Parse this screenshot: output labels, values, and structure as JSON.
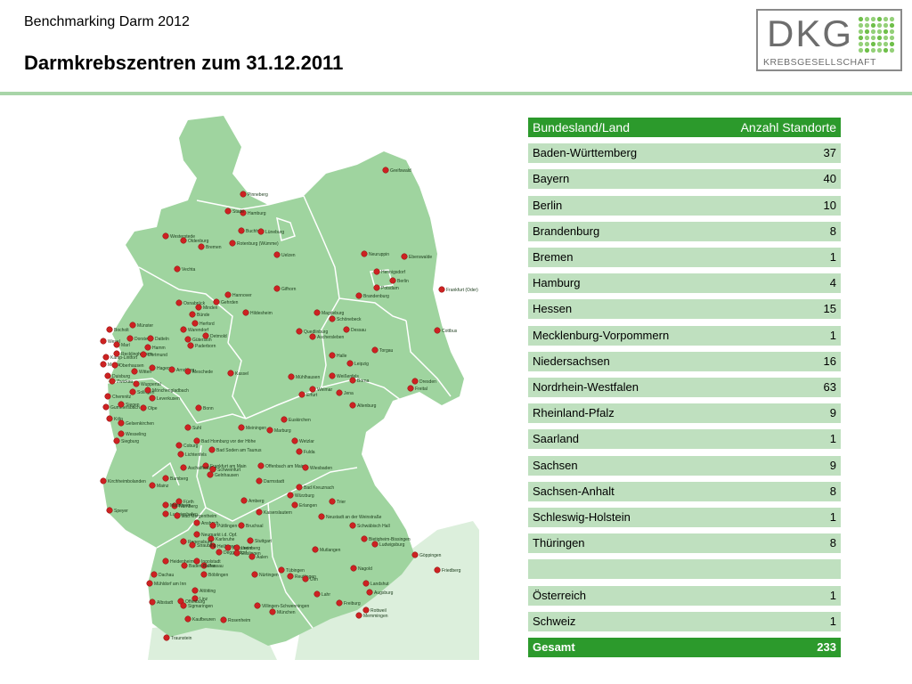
{
  "header": {
    "subtitle": "Benchmarking Darm 2012",
    "title": "Darmkrebszentren zum 31.12.2011"
  },
  "logo": {
    "letters": "DKG",
    "tagline": "KREBSGESELLSCHAFT",
    "colors": {
      "text": "#6d6d6d",
      "dots": "#6fbf4a"
    }
  },
  "colors": {
    "map_land": "#9fd49f",
    "map_border": "#ffffff",
    "map_neighbors": "#dcefdc",
    "marker": "#cc2222",
    "table_header": "#2c9a2c",
    "table_row": "#bfe0bf"
  },
  "table": {
    "header": {
      "name": "Bundesland/Land",
      "value": "Anzahl Standorte"
    },
    "rows": [
      {
        "name": "Baden-Württemberg",
        "value": "37"
      },
      {
        "name": "Bayern",
        "value": "40"
      },
      {
        "name": "Berlin",
        "value": "10"
      },
      {
        "name": "Brandenburg",
        "value": "8"
      },
      {
        "name": "Bremen",
        "value": "1"
      },
      {
        "name": "Hamburg",
        "value": "4"
      },
      {
        "name": "Hessen",
        "value": "15"
      },
      {
        "name": "Mecklenburg-Vorpommern",
        "value": "1"
      },
      {
        "name": "Niedersachsen",
        "value": "16"
      },
      {
        "name": "Nordrhein-Westfalen",
        "value": "63"
      },
      {
        "name": "Rheinland-Pfalz",
        "value": "9"
      },
      {
        "name": "Saarland",
        "value": "1"
      },
      {
        "name": "Sachsen",
        "value": "9"
      },
      {
        "name": "Sachsen-Anhalt",
        "value": "8"
      },
      {
        "name": "Schleswig-Holstein",
        "value": "1"
      },
      {
        "name": "Thüringen",
        "value": "8"
      },
      {
        "name": "",
        "value": ""
      },
      {
        "name": "Österreich",
        "value": "1"
      },
      {
        "name": "Schweiz",
        "value": "1"
      }
    ],
    "total": {
      "name": "Gesamt",
      "value": "233"
    }
  },
  "map": {
    "city_labels": [
      "Greifswald",
      "Pinneberg",
      "Hamburg",
      "Stade",
      "Buchholz",
      "Lüneburg",
      "Westerstede",
      "Oldenburg",
      "Bremen",
      "Rotenburg (Wümme)",
      "Uelzen",
      "Neuruppin",
      "Eberswalde",
      "Hennigsdorf",
      "Berlin",
      "Potsdam",
      "Brandenburg",
      "Frankfurt (Oder)",
      "Vechta",
      "Hannover",
      "Gehrden",
      "Osnabrück",
      "Minden",
      "Bünde",
      "Herford",
      "Hildesheim",
      "Gifhorn",
      "Magdeburg",
      "Schönebeck",
      "Quedlinburg",
      "Aschersleben",
      "Dessau",
      "Cottbus",
      "Torgau",
      "Halle",
      "Leipzig",
      "Weißenfels",
      "Borna",
      "Dresden",
      "Freital",
      "Bocholt",
      "Münster",
      "Warendorf",
      "Gütersloh",
      "Detmold",
      "Paderborn",
      "Wesel",
      "Marl",
      "Dorsten",
      "Datteln",
      "Hamm",
      "Kamp-Lintfort",
      "Recklinghausen",
      "Dortmund",
      "Moers",
      "Oberhausen",
      "Duisburg",
      "Witten",
      "Hagen",
      "Wuppertal",
      "Solingen",
      "Arnsberg",
      "Meschede",
      "Kassel",
      "Mühlhausen",
      "Weimar",
      "Erfurt",
      "Jena",
      "Altenburg",
      "Chemnitz",
      "Zwickau",
      "Mönchengladbach",
      "Leverkusen",
      "Olpe",
      "Gummersbach",
      "Siegen",
      "Köln",
      "Gelsenkirchen",
      "Wesseling",
      "Siegburg",
      "Bonn",
      "Euskirchen",
      "Marburg",
      "Suhl",
      "Meiningen",
      "Wetzlar",
      "Fulda",
      "Coburg",
      "Lichtenfels",
      "Bad Homburg vor der Höhe",
      "Bad Soden am Taunus",
      "Frankfurt am Main",
      "Gelnhausen",
      "Offenbach am Main",
      "Wiesbaden",
      "Aschaffenburg",
      "Schweinfurt",
      "Bamberg",
      "Mainz",
      "Darmstadt",
      "Bad Kreuznach",
      "Kirchheimbolanden",
      "Würzburg",
      "Erlangen",
      "Trier",
      "Fürth",
      "Nürnberg",
      "Amberg",
      "Mannheim",
      "Ludwigshafen",
      "Bad Mergentheim",
      "Kaiserslautern",
      "Neustadt an der Weinstraße",
      "Speyer",
      "Ansbach",
      "Neumarkt i.d. Opf.",
      "Püttlingen",
      "Bruchsal",
      "Karlsruhe",
      "Heilbronn",
      "Schwäbisch Hall",
      "Bietigheim-Bissingen",
      "Ludwigsburg",
      "Regensburg",
      "Straubing",
      "Deggendorf",
      "Pforzheim",
      "Leonberg",
      "Stuttgart",
      "Esslingen",
      "Aalen",
      "Mutlangen",
      "Göppingen",
      "Heidenheim",
      "Ingolstadt",
      "Passau",
      "Baden-Baden",
      "Böblingen",
      "Nürtingen",
      "Nagold",
      "Tübingen",
      "Reutlingen",
      "Ulm",
      "Landshut",
      "Augsburg",
      "Friedberg",
      "Dachau",
      "Mühldorf am Inn",
      "Altötting",
      "Linz",
      "Offenburg",
      "Lahr",
      "Albstadt",
      "Sigmaringen",
      "Villingen-Schwenningen",
      "München",
      "Freiburg",
      "Rottweil",
      "Memmingen",
      "Kaufbeuren",
      "Rosenheim",
      "Traunstein",
      "Rhein am Chiemsee",
      "Singen",
      "Ravensburg",
      "Baden"
    ]
  }
}
